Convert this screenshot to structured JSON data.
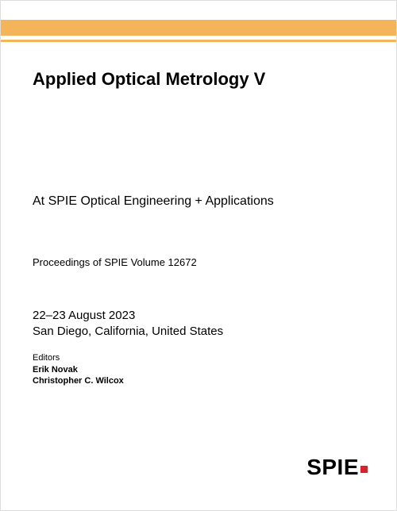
{
  "colors": {
    "accent_bar": "#f4b55a",
    "logo_dot": "#d8232a",
    "text": "#000000",
    "background": "#ffffff"
  },
  "title": "Applied Optical Metrology V",
  "subtitle": "At SPIE Optical Engineering + Applications",
  "proceedings": "Proceedings of SPIE Volume 12672",
  "dates": "22–23 August 2023",
  "location": "San Diego, California, United States",
  "editors_label": "Editors",
  "editors": {
    "0": "Erik Novak",
    "1": "Christopher C. Wilcox"
  },
  "logo_text": "SPIE"
}
